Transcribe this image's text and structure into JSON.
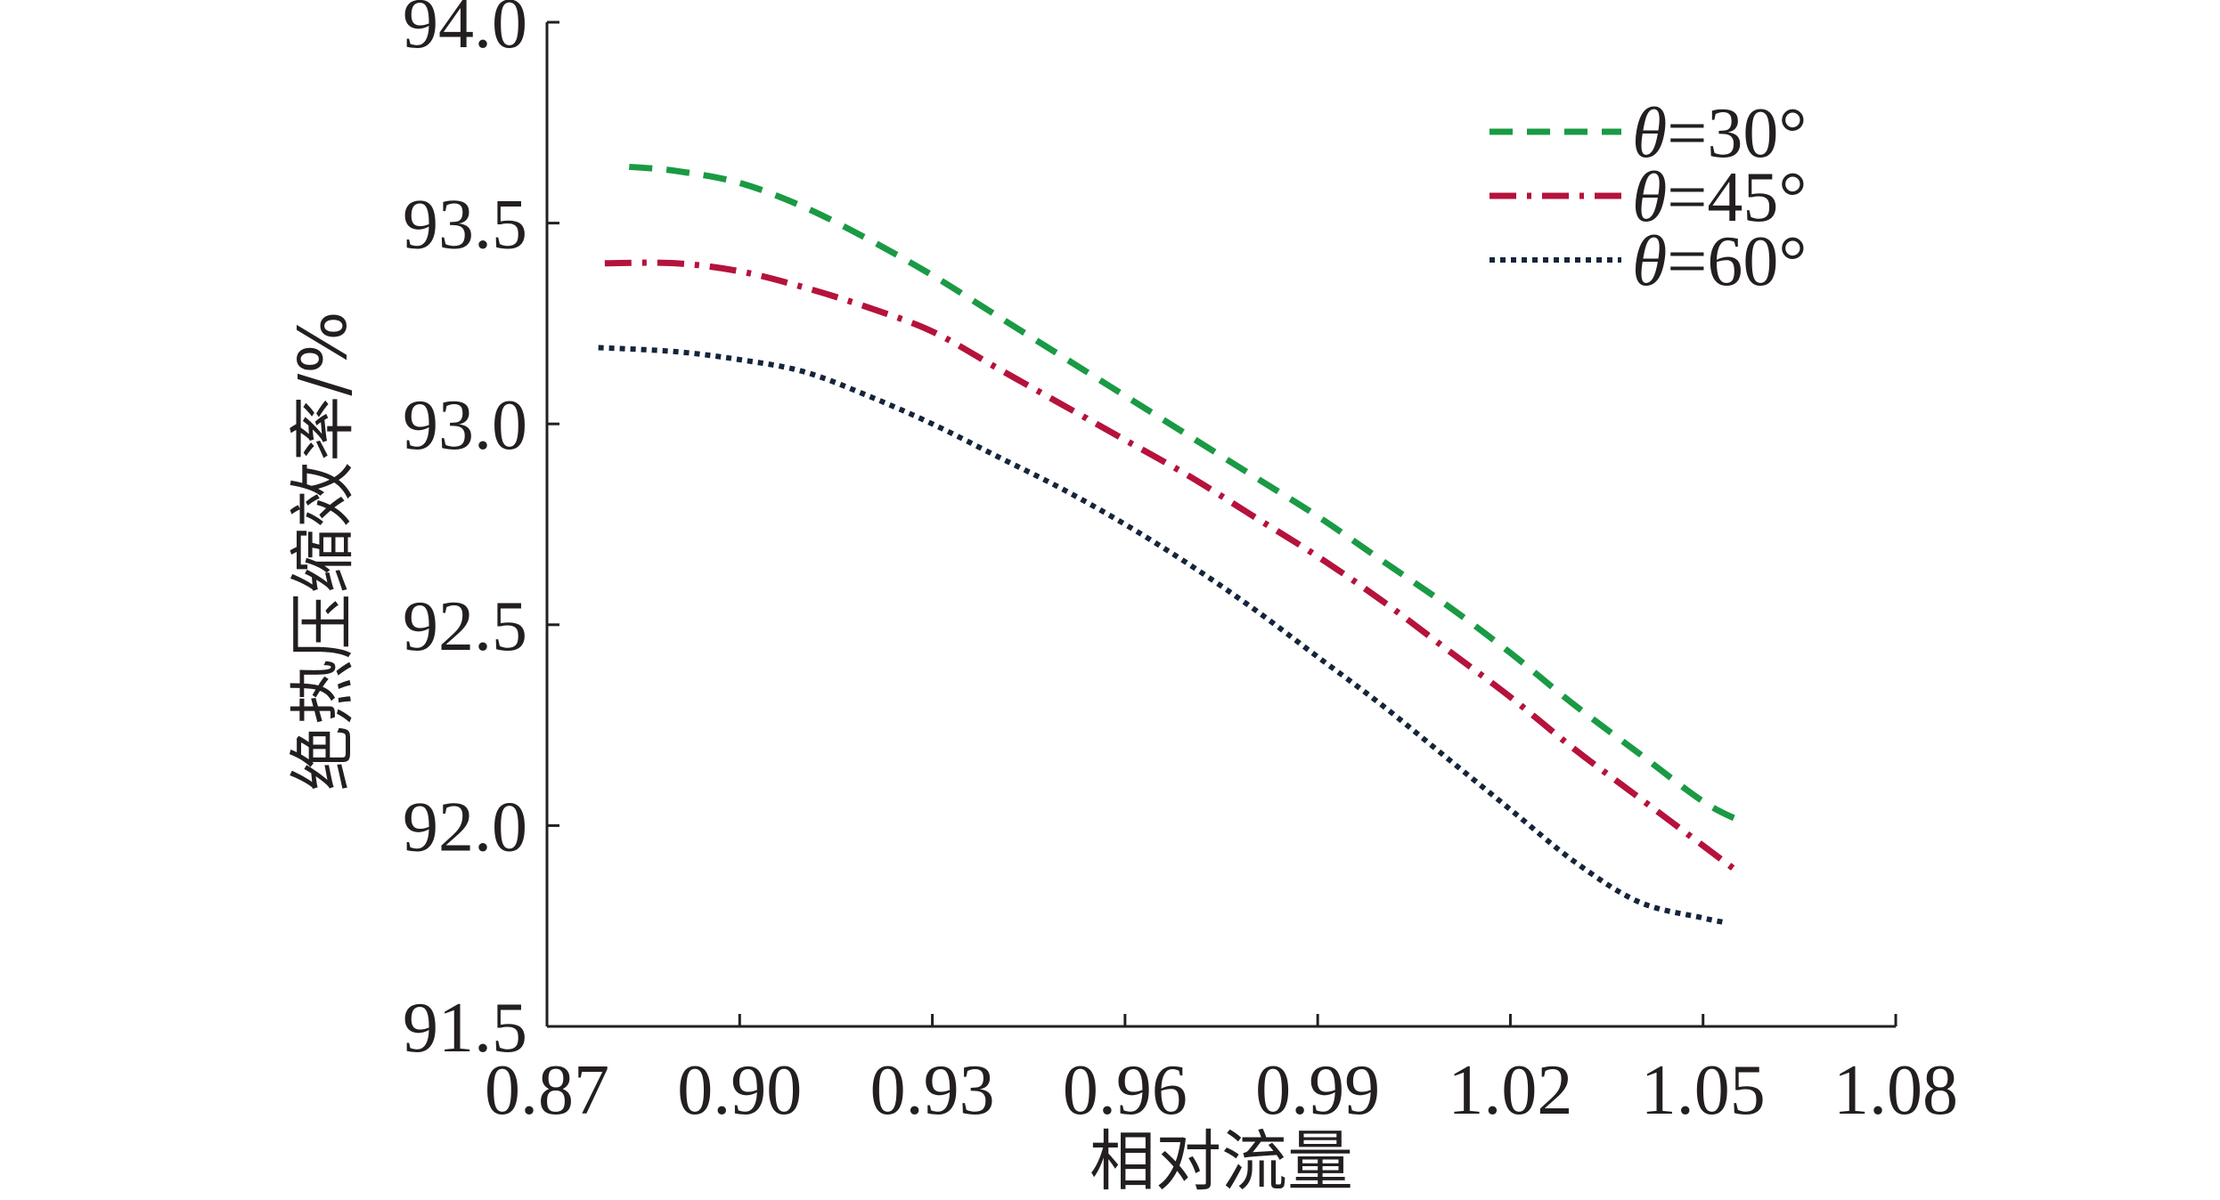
{
  "chart_data": {
    "type": "line",
    "title": "",
    "xlabel": "相对流量",
    "ylabel": "绝热压缩效率/%",
    "xlim": [
      0.87,
      1.08
    ],
    "ylim": [
      91.5,
      94.0
    ],
    "xticks": [
      "0.87",
      "0.90",
      "0.93",
      "0.96",
      "0.99",
      "1.02",
      "1.05",
      "1.08"
    ],
    "yticks": [
      "91.5",
      "92.0",
      "92.5",
      "93.0",
      "93.5",
      "94.0"
    ],
    "grid": false,
    "legend_position": "top-right",
    "series": [
      {
        "name": "θ=30°",
        "symbol": "θ",
        "label_rest": "=30°",
        "color": "#1a9a44",
        "dash": "dashed",
        "x": [
          0.8828,
          0.89,
          0.9,
          0.91,
          0.92,
          0.93,
          0.94,
          0.95,
          0.96,
          0.97,
          0.98,
          0.99,
          1.0,
          1.01,
          1.02,
          1.03,
          1.04,
          1.05,
          1.056
        ],
        "y": [
          93.64,
          93.63,
          93.6,
          93.54,
          93.46,
          93.37,
          93.27,
          93.17,
          93.07,
          92.97,
          92.87,
          92.77,
          92.66,
          92.55,
          92.43,
          92.3,
          92.18,
          92.06,
          92.01
        ]
      },
      {
        "name": "θ=45°",
        "symbol": "θ",
        "label_rest": "=45°",
        "color": "#b5123c",
        "dash": "dash-dot",
        "x": [
          0.879,
          0.89,
          0.9,
          0.91,
          0.92,
          0.93,
          0.94,
          0.95,
          0.96,
          0.97,
          0.98,
          0.99,
          1.0,
          1.01,
          1.02,
          1.03,
          1.04,
          1.05,
          1.055
        ],
        "y": [
          93.4,
          93.4,
          93.38,
          93.34,
          93.29,
          93.23,
          93.14,
          93.05,
          92.96,
          92.87,
          92.77,
          92.67,
          92.56,
          92.44,
          92.32,
          92.19,
          92.07,
          91.95,
          91.89
        ]
      },
      {
        "name": "θ=60°",
        "symbol": "θ",
        "label_rest": "=60°",
        "color": "#14253b",
        "dash": "dotted",
        "x": [
          0.878,
          0.89,
          0.9,
          0.91,
          0.92,
          0.93,
          0.94,
          0.95,
          0.96,
          0.97,
          0.98,
          0.99,
          1.0,
          1.01,
          1.02,
          1.03,
          1.04,
          1.05,
          1.053
        ],
        "y": [
          93.19,
          93.18,
          93.16,
          93.13,
          93.07,
          93.0,
          92.92,
          92.84,
          92.75,
          92.65,
          92.54,
          92.42,
          92.3,
          92.17,
          92.04,
          91.91,
          91.81,
          91.77,
          91.76
        ]
      }
    ]
  }
}
